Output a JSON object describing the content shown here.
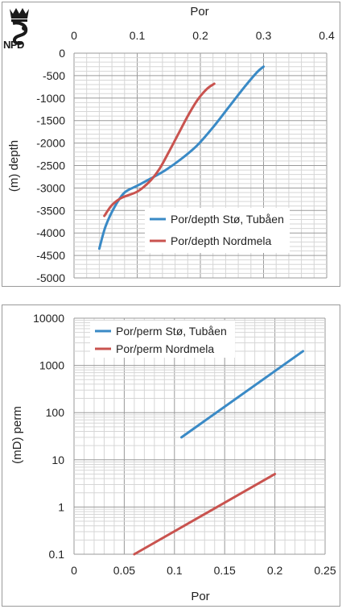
{
  "logo": {
    "text": "NPD",
    "icon": "npd-crown-logo"
  },
  "chart_data": [
    {
      "type": "line",
      "title": "",
      "xlabel": "Por",
      "ylabel": "(m) depth",
      "x_axis_position": "top",
      "xlim": [
        0,
        0.4
      ],
      "ylim": [
        -5000,
        0
      ],
      "x_ticks": [
        "0",
        "0.1",
        "0.2",
        "0.3",
        "0.4"
      ],
      "y_ticks": [
        "0",
        "-500",
        "-1000",
        "-1500",
        "-2000",
        "-2500",
        "-3000",
        "-3500",
        "-4000",
        "-4500",
        "-5000"
      ],
      "grid": true,
      "legend_position": "bottom-right",
      "series": [
        {
          "name": "Por/depth Stø, Tubåen",
          "color": "#3a8ac6",
          "x": [
            0.04,
            0.05,
            0.065,
            0.08,
            0.1,
            0.12,
            0.145,
            0.17,
            0.195,
            0.22,
            0.245,
            0.27,
            0.29,
            0.3
          ],
          "y": [
            -4350,
            -3850,
            -3400,
            -3100,
            -2950,
            -2800,
            -2600,
            -2350,
            -2050,
            -1650,
            -1200,
            -750,
            -420,
            -300
          ]
        },
        {
          "name": "Por/depth Nordmela",
          "color": "#c9534f",
          "x": [
            0.048,
            0.06,
            0.075,
            0.1,
            0.12,
            0.135,
            0.15,
            0.165,
            0.18,
            0.195,
            0.21,
            0.222
          ],
          "y": [
            -3620,
            -3380,
            -3220,
            -3080,
            -2850,
            -2580,
            -2200,
            -1800,
            -1400,
            -1050,
            -800,
            -680
          ]
        }
      ]
    },
    {
      "type": "line",
      "title": "",
      "xlabel": "Por",
      "ylabel": "(mD) perm",
      "xlim": [
        0,
        0.25
      ],
      "ylim": [
        0.1,
        10000
      ],
      "y_scale": "log",
      "x_ticks": [
        "0",
        "0.05",
        "0.1",
        "0.15",
        "0.2",
        "0.25"
      ],
      "y_ticks": [
        "0.1",
        "1",
        "10",
        "100",
        "1000",
        "10000"
      ],
      "grid": true,
      "legend_position": "top-left",
      "series": [
        {
          "name": "Por/perm Stø, Tubåen",
          "color": "#3a8ac6",
          "x": [
            0.107,
            0.228
          ],
          "y": [
            30,
            2000
          ]
        },
        {
          "name": "Por/perm Nordmela",
          "color": "#c9534f",
          "x": [
            0.06,
            0.2
          ],
          "y": [
            0.1,
            5
          ]
        }
      ]
    }
  ]
}
